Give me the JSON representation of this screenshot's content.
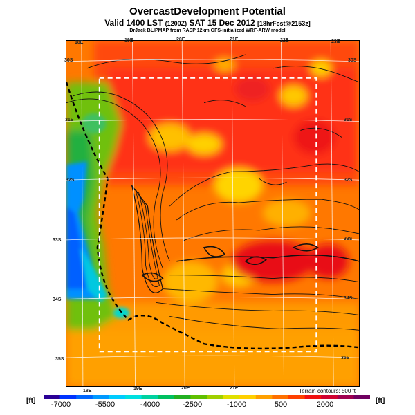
{
  "header": {
    "title": "OvercastDevelopment Potential",
    "subtitle_main": "Valid 1400 LST",
    "subtitle_small": "(1200Z)",
    "subtitle_date": "SAT 15 Dec 2012",
    "subtitle_forecast": "[18hrFcst@2153z]",
    "credit": "DrJack BLIPMAP from RASP 12km GFS-initialized WRF-ARW model"
  },
  "map": {
    "top_lon_labels": [
      "18E",
      "19E",
      "20E",
      "21E",
      "22E",
      "23E"
    ],
    "bottom_lon_labels": [
      "18E",
      "19E",
      "20E",
      "21E"
    ],
    "left_lat_labels": [
      "30S",
      "31S",
      "32S",
      "33S",
      "34S",
      "35S"
    ],
    "right_lat_labels": [
      "30S",
      "31S",
      "32S",
      "33S",
      "34S",
      "35S"
    ],
    "terrain_note": "Terrain contours: 500 ft",
    "coastline_color": "#000000",
    "inner_box_color": "#ffffff"
  },
  "legend": {
    "unit_left": "[ft]",
    "unit_right": "[ft]",
    "tick_labels": [
      "-7000",
      "-5500",
      "-4000",
      "-2500",
      "-1000",
      "500",
      "2000"
    ],
    "colors": [
      "#2a0096",
      "#0033ff",
      "#0066ff",
      "#0099ff",
      "#00ccff",
      "#00e0e0",
      "#00d2a0",
      "#00c060",
      "#22b022",
      "#60c000",
      "#a0d000",
      "#e0e000",
      "#ffd000",
      "#ffa000",
      "#ff7000",
      "#ff4000",
      "#f01010",
      "#d00030",
      "#a00050",
      "#700060"
    ]
  }
}
